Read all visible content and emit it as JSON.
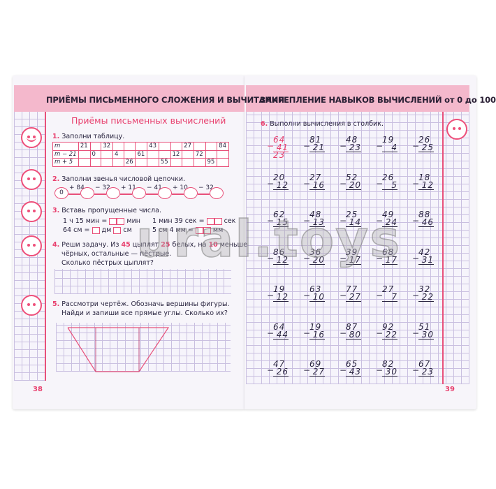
{
  "left_page": {
    "header": "ПРИЁМЫ ПИСЬМЕННОГО СЛОЖЕНИЯ И ВЫЧИТАНИЯ",
    "subtitle": "Приёмы письменных вычислений",
    "task1": {
      "num": "1.",
      "text": "Заполни таблицу.",
      "rows": [
        {
          "label": "m",
          "cells": [
            "21",
            "",
            "32",
            "",
            "",
            "",
            "43",
            "",
            "",
            "27",
            "",
            "",
            "84"
          ]
        },
        {
          "label": "m − 21",
          "cells": [
            "",
            "0",
            "",
            "4",
            "",
            "61",
            "",
            "",
            "12",
            "",
            "72",
            "",
            ""
          ]
        },
        {
          "label": "m + 5",
          "cells": [
            "",
            "",
            "",
            "",
            "26",
            "",
            "",
            "55",
            "",
            "",
            "",
            "95",
            ""
          ]
        }
      ]
    },
    "task2": {
      "num": "2.",
      "text": "Заполни звенья числовой цепочки.",
      "start": "0",
      "ops": [
        "+ 84",
        "− 32",
        "+ 11",
        "− 41",
        "+ 10",
        "− 32"
      ]
    },
    "task3": {
      "num": "3.",
      "text": "Вставь пропущенные числа.",
      "a1": "1 ч 15 мин =",
      "a1u": "мин",
      "a2": "64 см =",
      "a2u1": "дм",
      "a2u2": "см",
      "b1": "1 мин 39 сек =",
      "b1u": "сек",
      "b2": "5 см 4 мм =",
      "b2u": "мм"
    },
    "task4": {
      "num": "4.",
      "l1a": "Реши задачу. Из ",
      "n1": "45",
      "l1b": " цыплят ",
      "n2": "25",
      "l1c": " белых, на ",
      "n3": "10",
      "l1d": " меньше",
      "l2": "чёрных, остальные — пёстрые.",
      "l3": "Сколько пёстрых цыплят?"
    },
    "task5": {
      "num": "5.",
      "l1": "Рассмотри чертёж. Обозначь вершины фигуры.",
      "l2": "Найди и запиши все прямые углы. Сколько их?"
    },
    "page_number": "38"
  },
  "right_page": {
    "header": "ЗАКРЕПЛЕНИЕ НАВЫКОВ ВЫЧИСЛЕНИЙ от 0 до 100",
    "task6": {
      "num": "6.",
      "text": "Выполни вычисления в столбик.",
      "operator": "−",
      "problems": [
        [
          "64",
          "41",
          "23"
        ],
        [
          "81",
          "21"
        ],
        [
          "48",
          "23"
        ],
        [
          "19",
          "4"
        ],
        [
          "26",
          "25"
        ],
        [
          "20",
          "12"
        ],
        [
          "27",
          "16"
        ],
        [
          "52",
          "20"
        ],
        [
          "26",
          "5"
        ],
        [
          "18",
          "12"
        ],
        [
          "62",
          "15"
        ],
        [
          "48",
          "13"
        ],
        [
          "25",
          "14"
        ],
        [
          "49",
          "24"
        ],
        [
          "88",
          "46"
        ],
        [
          "86",
          "12"
        ],
        [
          "36",
          "20"
        ],
        [
          "39",
          "17"
        ],
        [
          "68",
          "17"
        ],
        [
          "42",
          "31"
        ],
        [
          "19",
          "12"
        ],
        [
          "63",
          "10"
        ],
        [
          "77",
          "27"
        ],
        [
          "27",
          "7"
        ],
        [
          "32",
          "22"
        ],
        [
          "64",
          "44"
        ],
        [
          "19",
          "16"
        ],
        [
          "87",
          "80"
        ],
        [
          "92",
          "22"
        ],
        [
          "51",
          "30"
        ],
        [
          "47",
          "26"
        ],
        [
          "69",
          "27"
        ],
        [
          "65",
          "43"
        ],
        [
          "82",
          "30"
        ],
        [
          "67",
          "23"
        ]
      ]
    },
    "page_number": "39"
  },
  "watermark": "ural.toys",
  "colors": {
    "accent": "#e8406e",
    "header_band": "#f4b8cc",
    "grid": "#c9bfe0"
  }
}
